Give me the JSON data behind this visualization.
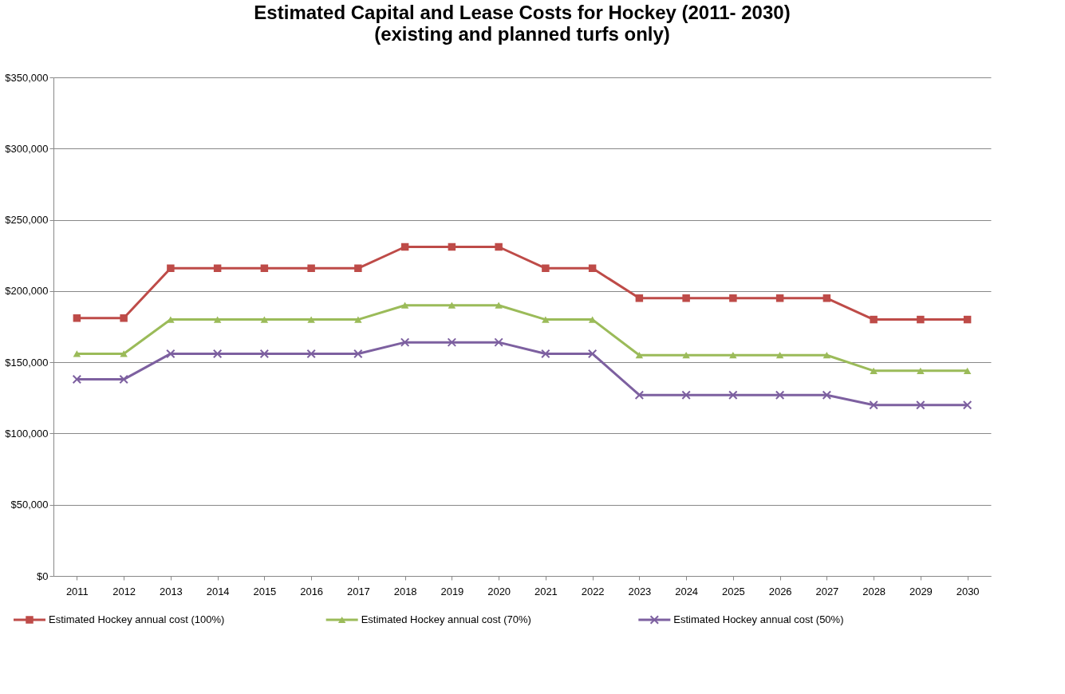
{
  "chart_data": {
    "type": "line",
    "title": "Estimated Capital and Lease Costs for Hockey (2011- 2030)",
    "subtitle": "(existing and planned turfs only)",
    "categories": [
      "2011",
      "2012",
      "2013",
      "2014",
      "2015",
      "2016",
      "2017",
      "2018",
      "2019",
      "2020",
      "2021",
      "2022",
      "2023",
      "2024",
      "2025",
      "2026",
      "2027",
      "2028",
      "2029",
      "2030"
    ],
    "series": [
      {
        "name": "Estimated Hockey annual cost (100%)",
        "color": "#be4b48",
        "marker": "square",
        "values": [
          181000,
          181000,
          216000,
          216000,
          216000,
          216000,
          216000,
          231000,
          231000,
          231000,
          216000,
          216000,
          195000,
          195000,
          195000,
          195000,
          195000,
          180000,
          180000,
          180000
        ]
      },
      {
        "name": "Estimated Hockey annual cost (70%)",
        "color": "#9bbb59",
        "marker": "triangle",
        "values": [
          156000,
          156000,
          180000,
          180000,
          180000,
          180000,
          180000,
          190000,
          190000,
          190000,
          180000,
          180000,
          155000,
          155000,
          155000,
          155000,
          155000,
          144000,
          144000,
          144000
        ]
      },
      {
        "name": "Estimated Hockey annual cost (50%)",
        "color": "#7d60a0",
        "marker": "cross",
        "values": [
          138000,
          138000,
          156000,
          156000,
          156000,
          156000,
          156000,
          164000,
          164000,
          164000,
          156000,
          156000,
          127000,
          127000,
          127000,
          127000,
          127000,
          120000,
          120000,
          120000
        ]
      }
    ],
    "ylim": [
      0,
      350000
    ],
    "yticks": [
      {
        "value": 0,
        "label": "$0"
      },
      {
        "value": 50000,
        "label": "$50,000"
      },
      {
        "value": 100000,
        "label": "$100,000"
      },
      {
        "value": 150000,
        "label": "$150,000"
      },
      {
        "value": 200000,
        "label": "$200,000"
      },
      {
        "value": 250000,
        "label": "$250,000"
      },
      {
        "value": 300000,
        "label": "$300,000"
      },
      {
        "value": 350000,
        "label": "$350,000"
      }
    ],
    "grid": "y",
    "legend": "bottom",
    "line_style": "solid"
  }
}
